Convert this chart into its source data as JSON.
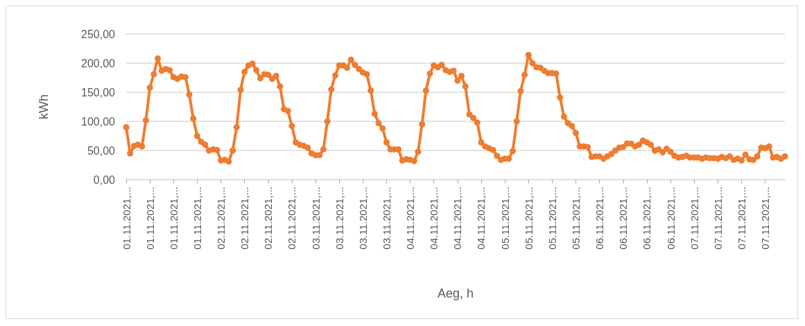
{
  "chart_data": {
    "type": "line",
    "xlabel": "Aeg, h",
    "ylabel": "kWh",
    "categories": [
      "01.11.2021,...",
      null,
      null,
      null,
      null,
      null,
      "01.11.2021,...",
      null,
      null,
      null,
      null,
      null,
      "01.11.2021,...",
      null,
      null,
      null,
      null,
      null,
      "01.11.2021,...",
      null,
      null,
      null,
      null,
      null,
      "02.11.2021,...",
      null,
      null,
      null,
      null,
      null,
      "02.11.2021,...",
      null,
      null,
      null,
      null,
      null,
      "02.11.2021,...",
      null,
      null,
      null,
      null,
      null,
      "02.11.2021,...",
      null,
      null,
      null,
      null,
      null,
      "03.11.2021,...",
      null,
      null,
      null,
      null,
      null,
      "03.11.2021,...",
      null,
      null,
      null,
      null,
      null,
      "03.11.2021,...",
      null,
      null,
      null,
      null,
      null,
      "03.11.2021,...",
      null,
      null,
      null,
      null,
      null,
      "04.11.2021,...",
      null,
      null,
      null,
      null,
      null,
      "04.11.2021,...",
      null,
      null,
      null,
      null,
      null,
      "04.11.2021,...",
      null,
      null,
      null,
      null,
      null,
      "04.11.2021,...",
      null,
      null,
      null,
      null,
      null,
      "05.11.2021,...",
      null,
      null,
      null,
      null,
      null,
      "05.11.2021,...",
      null,
      null,
      null,
      null,
      null,
      "05.11.2021,...",
      null,
      null,
      null,
      null,
      null,
      "05.11.2021,...",
      null,
      null,
      null,
      null,
      null,
      "06.11.2021,...",
      null,
      null,
      null,
      null,
      null,
      "06.11.2021,...",
      null,
      null,
      null,
      null,
      null,
      "06.11.2021,...",
      null,
      null,
      null,
      null,
      null,
      "06.11.2021,...",
      null,
      null,
      null,
      null,
      null,
      "07.11.2021,...",
      null,
      null,
      null,
      null,
      null,
      "07.11.2021,...",
      null,
      null,
      null,
      null,
      null,
      "07.11.2021,...",
      null,
      null,
      null,
      null,
      null,
      "07.11.2021,...",
      null,
      null,
      null,
      null,
      null
    ],
    "series": [
      {
        "color": "#ed7d31",
        "values": [
          90,
          45,
          58,
          60,
          57,
          102,
          158,
          181,
          208,
          187,
          190,
          188,
          176,
          173,
          177,
          176,
          146,
          105,
          75,
          65,
          60,
          50,
          52,
          51,
          33,
          34,
          31,
          50,
          90,
          154,
          185,
          196,
          199,
          188,
          174,
          181,
          180,
          173,
          178,
          160,
          121,
          118,
          92,
          64,
          60,
          58,
          55,
          45,
          42,
          42,
          52,
          100,
          155,
          179,
          196,
          196,
          192,
          206,
          197,
          190,
          184,
          181,
          153,
          113,
          97,
          88,
          64,
          52,
          52,
          52,
          33,
          35,
          34,
          32,
          48,
          95,
          153,
          182,
          196,
          193,
          197,
          188,
          185,
          187,
          170,
          178,
          160,
          112,
          106,
          98,
          64,
          57,
          54,
          51,
          41,
          34,
          36,
          36,
          49,
          100,
          152,
          180,
          214,
          200,
          193,
          192,
          187,
          183,
          183,
          182,
          141,
          108,
          97,
          92,
          80,
          57,
          57,
          56,
          39,
          40,
          40,
          36,
          40,
          44,
          50,
          55,
          56,
          62,
          62,
          57,
          60,
          67,
          64,
          60,
          50,
          52,
          47,
          53,
          48,
          41,
          38,
          39,
          41,
          38,
          38,
          38,
          36,
          38,
          37,
          37,
          36,
          39,
          37,
          40,
          34,
          36,
          33,
          43,
          35,
          34,
          40,
          55,
          54,
          57,
          38,
          39,
          36,
          40
        ]
      }
    ],
    "ylim": [
      0,
      250
    ],
    "yticks": [
      {
        "value": 0,
        "label": "0,00"
      },
      {
        "value": 50,
        "label": "50,00"
      },
      {
        "value": 100,
        "label": "100,00"
      },
      {
        "value": 150,
        "label": "150,00"
      },
      {
        "value": 200,
        "label": "200,00"
      },
      {
        "value": 250,
        "label": "250,00"
      }
    ],
    "grid": "y",
    "marker": "circle",
    "line_style": "solid"
  }
}
